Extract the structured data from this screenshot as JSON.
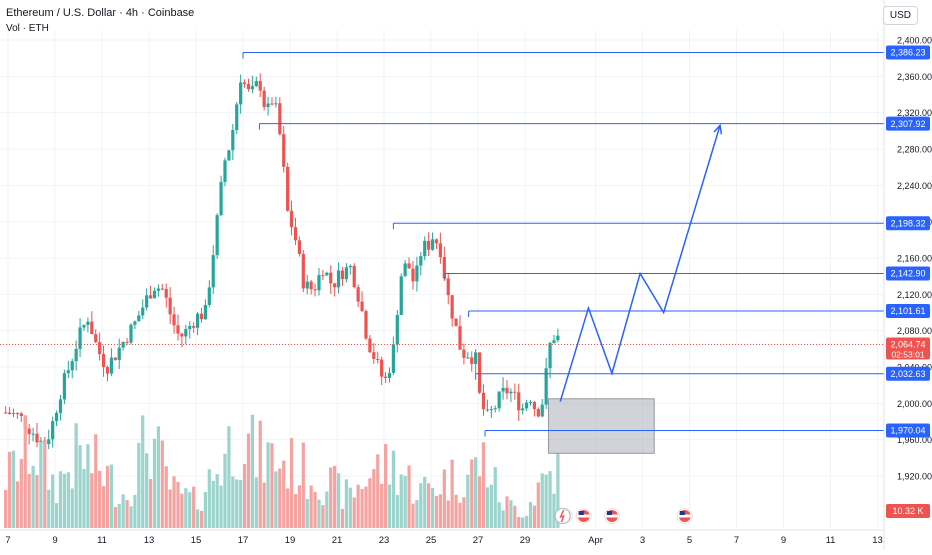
{
  "header": {
    "title": "Ethereum / U.S. Dollar · 4h · Coinbase",
    "volume_label": "Vol · ETH"
  },
  "currency_button": "USD",
  "colors": {
    "up": "#26a69a",
    "down": "#ef5350",
    "vol_up": "#9bd3cd",
    "vol_down": "#f4a3a1",
    "level": "#2962ff",
    "box": "#b2b5be"
  },
  "chart_data": {
    "type": "candlestick",
    "title": "Ethereum / U.S. Dollar · 4h · Coinbase",
    "ylim": [
      1895,
      2415
    ],
    "y_ticks": [
      1920,
      1960,
      2000,
      2040,
      2080,
      2120,
      2160,
      2200,
      2240,
      2280,
      2320,
      2360,
      2400
    ],
    "y_tick_labels": [
      "1,920.00",
      "1,960.00",
      "2,000.00",
      "2,040.00",
      "2,080.00",
      "2,120.00",
      "2,160.00",
      "2,200.00",
      "2,240.00",
      "2,280.00",
      "2,320.00",
      "2,360.00",
      "2,400.00"
    ],
    "x_range_days": [
      6.8,
      13.3
    ],
    "x_ticks": [
      {
        "day": 7,
        "label": "7"
      },
      {
        "day": 9,
        "label": "9"
      },
      {
        "day": 11,
        "label": "11"
      },
      {
        "day": 13,
        "label": "13"
      },
      {
        "day": 15,
        "label": "15"
      },
      {
        "day": 17,
        "label": "17"
      },
      {
        "day": 19,
        "label": "19"
      },
      {
        "day": 21,
        "label": "21"
      },
      {
        "day": 23,
        "label": "23"
      },
      {
        "day": 25,
        "label": "25"
      },
      {
        "day": 27,
        "label": "27"
      },
      {
        "day": 29,
        "label": "29"
      },
      {
        "day": 32,
        "label": "Apr"
      },
      {
        "day": 34,
        "label": "3"
      },
      {
        "day": 36,
        "label": "5"
      },
      {
        "day": 38,
        "label": "7"
      },
      {
        "day": 40,
        "label": "9"
      },
      {
        "day": 42,
        "label": "11"
      },
      {
        "day": 44,
        "label": "13"
      }
    ],
    "price_path": [
      [
        7.0,
        1990
      ],
      [
        7.5,
        1985
      ],
      [
        8.0,
        1970
      ],
      [
        8.5,
        1955
      ],
      [
        8.8,
        1968
      ],
      [
        9.2,
        2010
      ],
      [
        9.6,
        2040
      ],
      [
        10.0,
        2072
      ],
      [
        10.4,
        2095
      ],
      [
        10.8,
        2060
      ],
      [
        11.2,
        2040
      ],
      [
        11.6,
        2055
      ],
      [
        12.0,
        2072
      ],
      [
        12.4,
        2088
      ],
      [
        12.8,
        2110
      ],
      [
        13.2,
        2130
      ],
      [
        13.6,
        2125
      ],
      [
        14.0,
        2090
      ],
      [
        14.3,
        2072
      ],
      [
        14.6,
        2080
      ],
      [
        15.0,
        2095
      ],
      [
        15.4,
        2100
      ],
      [
        15.8,
        2180
      ],
      [
        16.2,
        2265
      ],
      [
        16.5,
        2290
      ],
      [
        16.9,
        2360
      ],
      [
        17.3,
        2338
      ],
      [
        17.7,
        2355
      ],
      [
        18.0,
        2318
      ],
      [
        18.3,
        2338
      ],
      [
        18.6,
        2290
      ],
      [
        18.9,
        2210
      ],
      [
        19.2,
        2185
      ],
      [
        19.6,
        2130
      ],
      [
        20.0,
        2125
      ],
      [
        20.4,
        2150
      ],
      [
        20.8,
        2130
      ],
      [
        21.2,
        2145
      ],
      [
        21.6,
        2150
      ],
      [
        22.0,
        2110
      ],
      [
        22.3,
        2070
      ],
      [
        22.6,
        2050
      ],
      [
        22.9,
        2030
      ],
      [
        23.1,
        2025
      ],
      [
        23.4,
        2060
      ],
      [
        23.7,
        2140
      ],
      [
        24.0,
        2155
      ],
      [
        24.3,
        2130
      ],
      [
        24.6,
        2170
      ],
      [
        24.9,
        2175
      ],
      [
        25.1,
        2185
      ],
      [
        25.4,
        2170
      ],
      [
        25.7,
        2120
      ],
      [
        26.0,
        2090
      ],
      [
        26.3,
        2055
      ],
      [
        26.6,
        2055
      ],
      [
        26.9,
        2048
      ],
      [
        27.1,
        2000
      ],
      [
        27.4,
        1985
      ],
      [
        27.7,
        1995
      ],
      [
        28.0,
        2010
      ],
      [
        28.3,
        2015
      ],
      [
        28.6,
        2005
      ],
      [
        28.9,
        1995
      ],
      [
        29.2,
        2010
      ],
      [
        29.5,
        1990
      ],
      [
        29.8,
        2005
      ],
      [
        30.0,
        2060
      ],
      [
        30.3,
        2078
      ],
      [
        30.5,
        2066
      ]
    ],
    "volume_path": [
      [
        7.0,
        0.5
      ],
      [
        8.0,
        0.8
      ],
      [
        9.0,
        0.4
      ],
      [
        10.0,
        0.7
      ],
      [
        11.0,
        0.55
      ],
      [
        12.0,
        0.3
      ],
      [
        13.0,
        0.9
      ],
      [
        14.0,
        0.35
      ],
      [
        15.0,
        0.25
      ],
      [
        16.0,
        0.6
      ],
      [
        16.8,
        0.95
      ],
      [
        17.5,
        0.7
      ],
      [
        18.5,
        0.65
      ],
      [
        19.5,
        0.55
      ],
      [
        20.5,
        0.45
      ],
      [
        21.5,
        0.3
      ],
      [
        22.5,
        0.55
      ],
      [
        23.5,
        0.6
      ],
      [
        24.5,
        0.35
      ],
      [
        25.5,
        0.45
      ],
      [
        26.5,
        0.5
      ],
      [
        27.3,
        0.65
      ],
      [
        28.0,
        0.25
      ],
      [
        29.0,
        0.15
      ],
      [
        29.8,
        0.5
      ],
      [
        30.3,
        0.55
      ]
    ],
    "levels": [
      {
        "value": 2386.23,
        "label": "2,386.23",
        "from_day": 17.0
      },
      {
        "value": 2307.92,
        "label": "2,307.92",
        "from_day": 17.7
      },
      {
        "value": 2198.32,
        "label": "2,198.32",
        "from_day": 23.4
      },
      {
        "value": 2142.9,
        "label": "2,142.90",
        "from_day": 25.6
      },
      {
        "value": 2101.61,
        "label": "2,101.61",
        "from_day": 26.6
      },
      {
        "value": 2032.63,
        "label": "2,032.63",
        "from_day": 26.9
      },
      {
        "value": 1970.04,
        "label": "1,970.04",
        "from_day": 27.3
      }
    ],
    "current_price": {
      "value": 2064.74,
      "label": "2,064.74",
      "countdown": "02:53:01"
    },
    "volume_tag": "10.32 K",
    "zone": {
      "from_day": 30.0,
      "to_day": 34.5,
      "low": 1945,
      "high": 2005
    },
    "projection_path": [
      [
        30.5,
        2002
      ],
      [
        31.7,
        2105
      ],
      [
        32.7,
        2033
      ],
      [
        33.9,
        2143
      ],
      [
        34.9,
        2100
      ],
      [
        37.3,
        2306
      ]
    ],
    "event_marker_days": [
      30.7,
      31.5,
      32.7,
      35.8
    ],
    "lightning_marker_day": 30.6
  }
}
